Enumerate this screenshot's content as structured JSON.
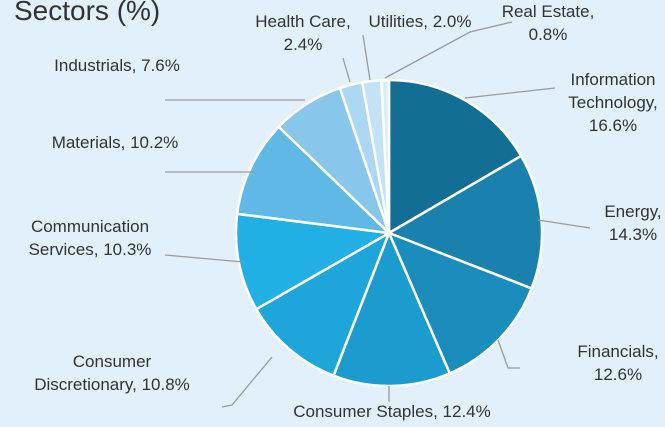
{
  "chart_data": {
    "type": "pie",
    "title": "Sectors (%)",
    "values": [
      16.6,
      14.3,
      12.6,
      12.4,
      10.8,
      10.3,
      10.2,
      7.6,
      2.4,
      2.0,
      0.8
    ],
    "value_labels": [
      "Information\nTechnology,\n16.6%",
      "Energy,\n14.3%",
      "Financials,\n12.6%",
      "Consumer Staples, 12.4%",
      "Consumer\nDiscretionary, 10.8%",
      "Communication\nServices, 10.3%",
      "Materials, 10.2%",
      "Industrials, 7.6%",
      "Health Care,\n2.4%",
      "Utilities, 2.0%",
      "Real Estate,\n0.8%"
    ],
    "colors": [
      "#136e96",
      "#1a80ad",
      "#1a8dbd",
      "#1c9bcf",
      "#1ea6da",
      "#22afe4",
      "#5fb8e6",
      "#88c6ec",
      "#abd7f2",
      "#c3e2f6",
      "#dcedf9"
    ]
  }
}
